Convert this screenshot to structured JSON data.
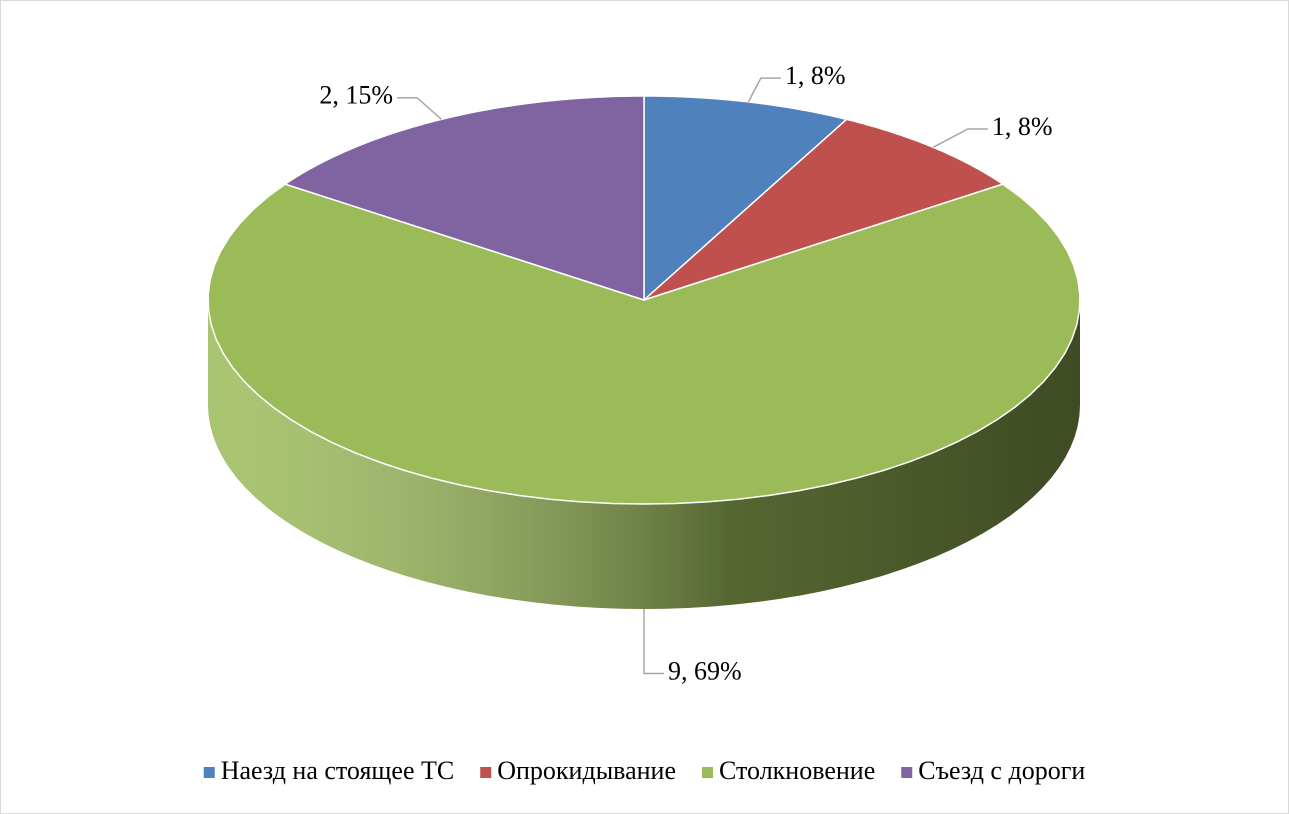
{
  "chart_data": {
    "type": "pie3d",
    "categories": [
      "Наезд на стоящее ТС",
      "Опрокидывание",
      "Столкновение",
      "Съезд с дороги"
    ],
    "values": [
      1,
      1,
      9,
      2
    ],
    "value_labels": [
      "1, 8%",
      "1, 8%",
      "9, 69%",
      "2, 15%"
    ],
    "colors": [
      "#4f81bd",
      "#c0504d",
      "#9bbb59",
      "#8064a2"
    ],
    "legend": "bottom"
  }
}
